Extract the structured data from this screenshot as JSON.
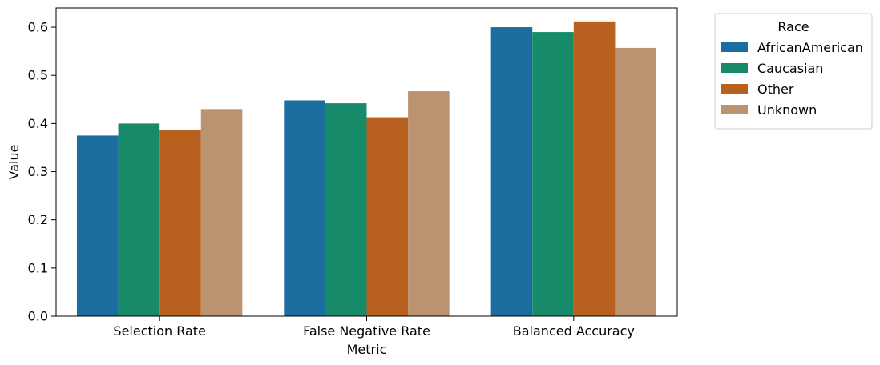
{
  "chart_data": {
    "type": "bar",
    "categories": [
      "Selection Rate",
      "False Negative Rate",
      "Balanced Accuracy"
    ],
    "series": [
      {
        "name": "AfricanAmerican",
        "color": "#1a6d9e",
        "values": [
          0.375,
          0.448,
          0.6
        ]
      },
      {
        "name": "Caucasian",
        "color": "#178b69",
        "values": [
          0.4,
          0.442,
          0.59
        ]
      },
      {
        "name": "Other",
        "color": "#b8601e",
        "values": [
          0.387,
          0.413,
          0.612
        ]
      },
      {
        "name": "Unknown",
        "color": "#bc9370",
        "values": [
          0.43,
          0.467,
          0.557
        ]
      }
    ],
    "xlabel": "Metric",
    "ylabel": "Value",
    "ylim": [
      0,
      0.64
    ],
    "yticks": [
      0.0,
      0.1,
      0.2,
      0.3,
      0.4,
      0.5,
      0.6
    ],
    "ytick_labels": [
      "0.0",
      "0.1",
      "0.2",
      "0.3",
      "0.4",
      "0.5",
      "0.6"
    ],
    "legend": {
      "title": "Race",
      "position": "outside-right"
    },
    "grid": false
  }
}
